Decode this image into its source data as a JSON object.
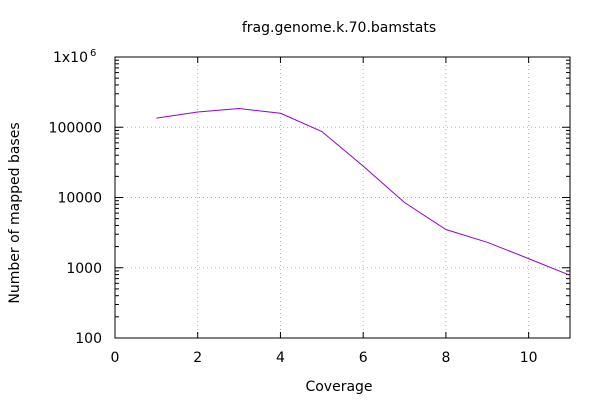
{
  "chart_data": {
    "type": "line",
    "title": "frag.genome.k.70.bamstats",
    "xlabel": "Coverage",
    "ylabel": "Number of mapped bases",
    "xlim": [
      0,
      11
    ],
    "ylim": [
      100,
      1000000
    ],
    "yscale": "log",
    "grid": true,
    "x_ticks": [
      0,
      2,
      4,
      6,
      8,
      10
    ],
    "x_tick_labels": [
      "0",
      "2",
      "4",
      "6",
      "8",
      "10"
    ],
    "y_ticks": [
      100,
      1000,
      10000,
      100000,
      1000000
    ],
    "y_tick_labels": [
      "100",
      "1000",
      "10000",
      "100000",
      "1x10"
    ],
    "y_top_exponent": "6",
    "series": [
      {
        "color": "#9400d3",
        "x": [
          1,
          2,
          3,
          4,
          5,
          6,
          7,
          8,
          9,
          10,
          11
        ],
        "y": [
          135000,
          165000,
          185000,
          158000,
          87000,
          28000,
          8500,
          3500,
          2300,
          1350,
          780
        ]
      }
    ]
  }
}
